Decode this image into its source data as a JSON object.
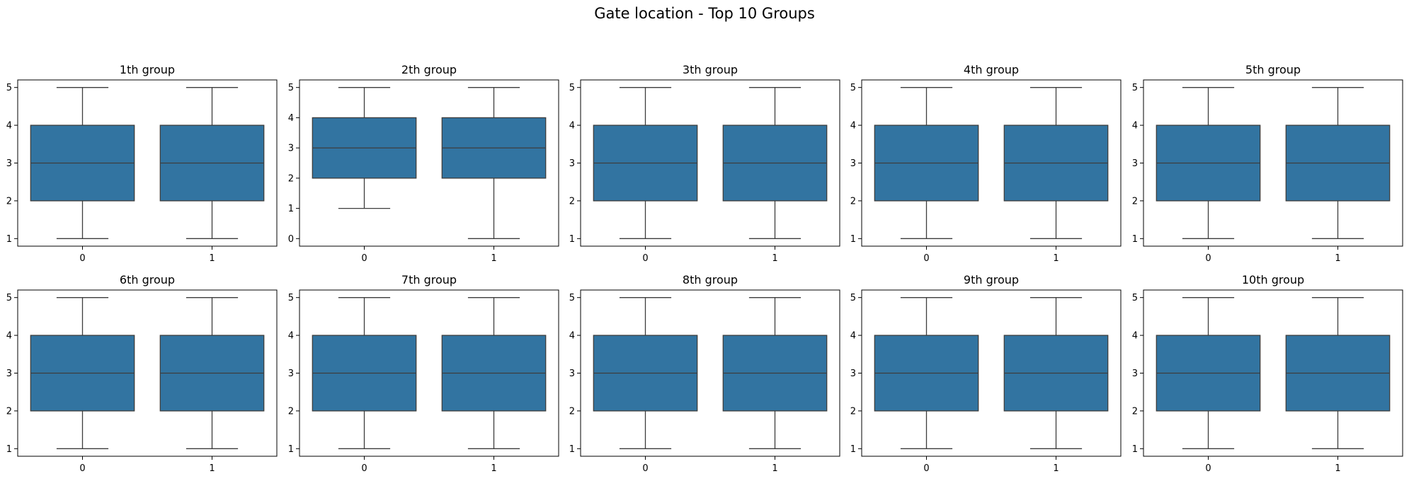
{
  "suptitle": "Gate location - Top 10 Groups",
  "colors": {
    "box_fill": "#3274a1",
    "line": "#3d3d3d",
    "axes": "#000000"
  },
  "chart_data": [
    {
      "type": "box",
      "title": "1th group",
      "categories": [
        "0",
        "1"
      ],
      "ylim": [
        0.8,
        5.2
      ],
      "yticks": [
        1,
        2,
        3,
        4,
        5
      ],
      "boxes": [
        {
          "category": "0",
          "whislo": 1,
          "q1": 2,
          "med": 3,
          "q3": 4,
          "whishi": 5
        },
        {
          "category": "1",
          "whislo": 1,
          "q1": 2,
          "med": 3,
          "q3": 4,
          "whishi": 5
        }
      ]
    },
    {
      "type": "box",
      "title": "2th group",
      "categories": [
        "0",
        "1"
      ],
      "ylim": [
        -0.25,
        5.25
      ],
      "yticks": [
        0,
        1,
        2,
        3,
        4,
        5
      ],
      "boxes": [
        {
          "category": "0",
          "whislo": 1,
          "q1": 2,
          "med": 3,
          "q3": 4,
          "whishi": 5
        },
        {
          "category": "1",
          "whislo": 0,
          "q1": 2,
          "med": 3,
          "q3": 4,
          "whishi": 5
        }
      ]
    },
    {
      "type": "box",
      "title": "3th group",
      "categories": [
        "0",
        "1"
      ],
      "ylim": [
        0.8,
        5.2
      ],
      "yticks": [
        1,
        2,
        3,
        4,
        5
      ],
      "boxes": [
        {
          "category": "0",
          "whislo": 1,
          "q1": 2,
          "med": 3,
          "q3": 4,
          "whishi": 5
        },
        {
          "category": "1",
          "whislo": 1,
          "q1": 2,
          "med": 3,
          "q3": 4,
          "whishi": 5
        }
      ]
    },
    {
      "type": "box",
      "title": "4th group",
      "categories": [
        "0",
        "1"
      ],
      "ylim": [
        0.8,
        5.2
      ],
      "yticks": [
        1,
        2,
        3,
        4,
        5
      ],
      "boxes": [
        {
          "category": "0",
          "whislo": 1,
          "q1": 2,
          "med": 3,
          "q3": 4,
          "whishi": 5
        },
        {
          "category": "1",
          "whislo": 1,
          "q1": 2,
          "med": 3,
          "q3": 4,
          "whishi": 5
        }
      ]
    },
    {
      "type": "box",
      "title": "5th group",
      "categories": [
        "0",
        "1"
      ],
      "ylim": [
        0.8,
        5.2
      ],
      "yticks": [
        1,
        2,
        3,
        4,
        5
      ],
      "boxes": [
        {
          "category": "0",
          "whislo": 1,
          "q1": 2,
          "med": 3,
          "q3": 4,
          "whishi": 5
        },
        {
          "category": "1",
          "whislo": 1,
          "q1": 2,
          "med": 3,
          "q3": 4,
          "whishi": 5
        }
      ]
    },
    {
      "type": "box",
      "title": "6th group",
      "categories": [
        "0",
        "1"
      ],
      "ylim": [
        0.8,
        5.2
      ],
      "yticks": [
        1,
        2,
        3,
        4,
        5
      ],
      "boxes": [
        {
          "category": "0",
          "whislo": 1,
          "q1": 2,
          "med": 3,
          "q3": 4,
          "whishi": 5
        },
        {
          "category": "1",
          "whislo": 1,
          "q1": 2,
          "med": 3,
          "q3": 4,
          "whishi": 5
        }
      ]
    },
    {
      "type": "box",
      "title": "7th group",
      "categories": [
        "0",
        "1"
      ],
      "ylim": [
        0.8,
        5.2
      ],
      "yticks": [
        1,
        2,
        3,
        4,
        5
      ],
      "boxes": [
        {
          "category": "0",
          "whislo": 1,
          "q1": 2,
          "med": 3,
          "q3": 4,
          "whishi": 5
        },
        {
          "category": "1",
          "whislo": 1,
          "q1": 2,
          "med": 3,
          "q3": 4,
          "whishi": 5
        }
      ]
    },
    {
      "type": "box",
      "title": "8th group",
      "categories": [
        "0",
        "1"
      ],
      "ylim": [
        0.8,
        5.2
      ],
      "yticks": [
        1,
        2,
        3,
        4,
        5
      ],
      "boxes": [
        {
          "category": "0",
          "whislo": 1,
          "q1": 2,
          "med": 3,
          "q3": 4,
          "whishi": 5
        },
        {
          "category": "1",
          "whislo": 1,
          "q1": 2,
          "med": 3,
          "q3": 4,
          "whishi": 5
        }
      ]
    },
    {
      "type": "box",
      "title": "9th group",
      "categories": [
        "0",
        "1"
      ],
      "ylim": [
        0.8,
        5.2
      ],
      "yticks": [
        1,
        2,
        3,
        4,
        5
      ],
      "boxes": [
        {
          "category": "0",
          "whislo": 1,
          "q1": 2,
          "med": 3,
          "q3": 4,
          "whishi": 5
        },
        {
          "category": "1",
          "whislo": 1,
          "q1": 2,
          "med": 3,
          "q3": 4,
          "whishi": 5
        }
      ]
    },
    {
      "type": "box",
      "title": "10th group",
      "categories": [
        "0",
        "1"
      ],
      "ylim": [
        0.8,
        5.2
      ],
      "yticks": [
        1,
        2,
        3,
        4,
        5
      ],
      "boxes": [
        {
          "category": "0",
          "whislo": 1,
          "q1": 2,
          "med": 3,
          "q3": 4,
          "whishi": 5
        },
        {
          "category": "1",
          "whislo": 1,
          "q1": 2,
          "med": 3,
          "q3": 4,
          "whishi": 5
        }
      ]
    }
  ]
}
